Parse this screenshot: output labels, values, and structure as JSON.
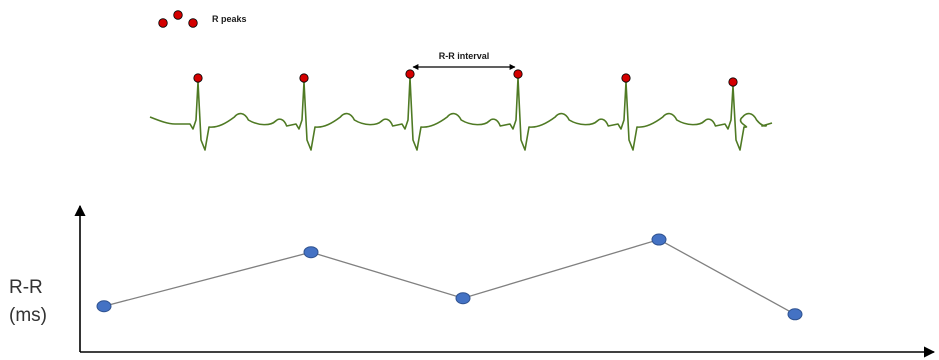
{
  "legend": {
    "label": "R peaks",
    "marker_color": "#d40000"
  },
  "annotation": {
    "interval_label": "R-R interval"
  },
  "y_axis": {
    "label_line1": "R-R",
    "label_line2": "(ms)"
  },
  "colors": {
    "ecg_trace": "#4f7a24",
    "peak_marker": "#d40000",
    "rr_point": "#4472c4",
    "rr_line": "#808080",
    "axis": "#000000"
  },
  "chart_data": {
    "type": "line",
    "description_series": "R-R",
    "y_relative": [
      0.25,
      0.72,
      0.32,
      0.83,
      0.18
    ],
    "grid": false
  },
  "ecg": {
    "r_peak_count": 6
  }
}
